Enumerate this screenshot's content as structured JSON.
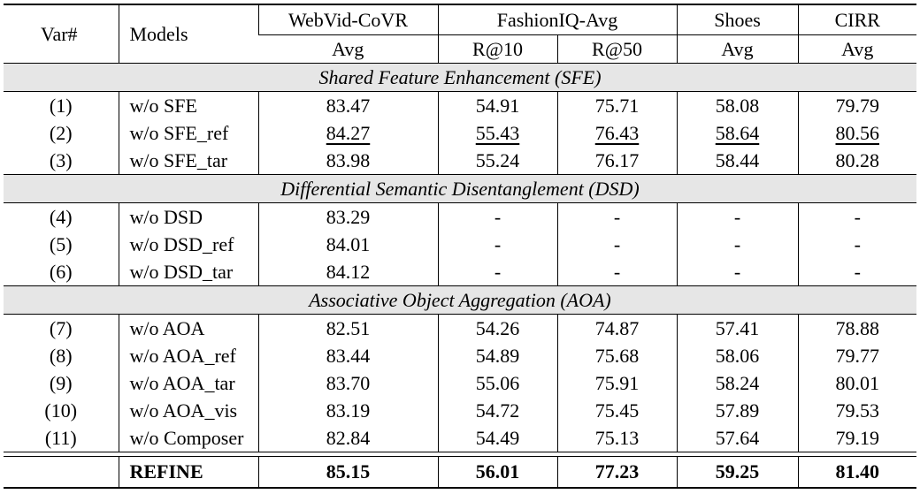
{
  "header": {
    "var_label": "Var#",
    "models_label": "Models",
    "groups": [
      "WebVid-CoVR",
      "FashionIQ-Avg",
      "Shoes",
      "CIRR"
    ],
    "metrics": [
      "Avg",
      "R@10",
      "R@50",
      "Avg",
      "Avg"
    ]
  },
  "sections": [
    {
      "title": "Shared Feature Enhancement (SFE)",
      "rows": [
        {
          "var": "(1)",
          "model": "w/o SFE",
          "values": [
            "83.47",
            "54.91",
            "75.71",
            "58.08",
            "79.79"
          ]
        },
        {
          "var": "(2)",
          "model": "w/o SFE_ref",
          "values": [
            "84.27",
            "55.43",
            "76.43",
            "58.64",
            "80.56"
          ]
        },
        {
          "var": "(3)",
          "model": "w/o SFE_tar",
          "values": [
            "83.98",
            "55.24",
            "76.17",
            "58.44",
            "80.28"
          ]
        }
      ]
    },
    {
      "title": "Differential Semantic Disentanglement (DSD)",
      "rows": [
        {
          "var": "(4)",
          "model": "w/o DSD",
          "values": [
            "83.29",
            "-",
            "-",
            "-",
            "-"
          ]
        },
        {
          "var": "(5)",
          "model": "w/o DSD_ref",
          "values": [
            "84.01",
            "-",
            "-",
            "-",
            "-"
          ]
        },
        {
          "var": "(6)",
          "model": "w/o DSD_tar",
          "values": [
            "84.12",
            "-",
            "-",
            "-",
            "-"
          ]
        }
      ]
    },
    {
      "title": "Associative Object Aggregation (AOA)",
      "rows": [
        {
          "var": "(7)",
          "model": "w/o AOA",
          "values": [
            "82.51",
            "54.26",
            "74.87",
            "57.41",
            "78.88"
          ]
        },
        {
          "var": "(8)",
          "model": "w/o AOA_ref",
          "values": [
            "83.44",
            "54.89",
            "75.68",
            "58.06",
            "79.77"
          ]
        },
        {
          "var": "(9)",
          "model": "w/o AOA_tar",
          "values": [
            "83.70",
            "55.06",
            "75.91",
            "58.24",
            "80.01"
          ]
        },
        {
          "var": "(10)",
          "model": "w/o AOA_vis",
          "values": [
            "83.19",
            "54.72",
            "75.45",
            "57.89",
            "79.53"
          ]
        },
        {
          "var": "(11)",
          "model": "w/o Composer",
          "values": [
            "82.84",
            "54.49",
            "75.13",
            "57.64",
            "79.19"
          ]
        }
      ]
    }
  ],
  "final": {
    "var": "",
    "model": "REFINE",
    "values": [
      "85.15",
      "56.01",
      "77.23",
      "59.25",
      "81.40"
    ]
  }
}
